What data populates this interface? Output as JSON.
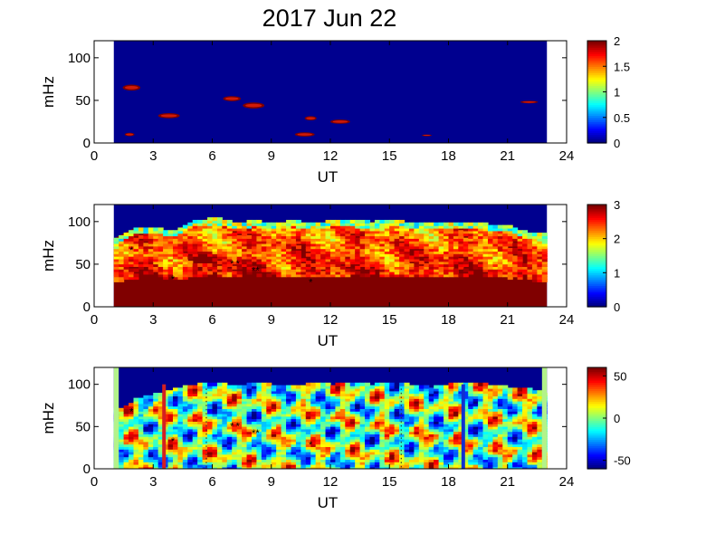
{
  "title": "2017 Jun 22",
  "x_tick_labels": [
    "0",
    "3",
    "6",
    "9",
    "12",
    "15",
    "18",
    "21",
    "24"
  ],
  "y_tick_labels": [
    "0",
    "50",
    "100"
  ],
  "xlabel": "UT",
  "ylabel": "mHz",
  "colors": {
    "background_fill": "#00008f",
    "bad_data_fill": "#b3f28a",
    "positive_line": "#d42020",
    "negative_line": "#1030d0"
  },
  "chart_data": [
    {
      "type": "heatmap",
      "colormap": "jet",
      "xlim": [
        0,
        24
      ],
      "ylim": [
        0,
        120
      ],
      "data_range": [
        1.0,
        23.0
      ],
      "clim": [
        0,
        2
      ],
      "colorbar_ticks": [
        "0",
        "0.5",
        "1",
        "1.5",
        "2"
      ],
      "xlabel": "UT",
      "ylabel": "mHz",
      "highlights": [
        {
          "x": 1.9,
          "y": 65,
          "w": 0.9,
          "h": 7
        },
        {
          "x": 1.8,
          "y": 10,
          "w": 0.5,
          "h": 4
        },
        {
          "x": 3.8,
          "y": 32,
          "w": 1.1,
          "h": 6
        },
        {
          "x": 7.0,
          "y": 52,
          "w": 0.9,
          "h": 6
        },
        {
          "x": 8.1,
          "y": 44,
          "w": 1.1,
          "h": 7
        },
        {
          "x": 10.7,
          "y": 10,
          "w": 1.0,
          "h": 5
        },
        {
          "x": 11.0,
          "y": 29,
          "w": 0.6,
          "h": 5
        },
        {
          "x": 12.5,
          "y": 25,
          "w": 1.0,
          "h": 5
        },
        {
          "x": 16.9,
          "y": 9,
          "w": 0.5,
          "h": 2
        },
        {
          "x": 22.1,
          "y": 48,
          "w": 0.9,
          "h": 3
        }
      ]
    },
    {
      "type": "heatmap",
      "colormap": "jet",
      "xlim": [
        0,
        24
      ],
      "ylim": [
        0,
        120
      ],
      "data_range": [
        1.0,
        23.0
      ],
      "clim": [
        0,
        3
      ],
      "colorbar_ticks": [
        "0",
        "1",
        "2",
        "3"
      ],
      "xlabel": "UT",
      "ylabel": "mHz",
      "upper_edge": [
        [
          1,
          80
        ],
        [
          2,
          92
        ],
        [
          3,
          92
        ],
        [
          4,
          88
        ],
        [
          5,
          100
        ],
        [
          6,
          104
        ],
        [
          7,
          98
        ],
        [
          8,
          100
        ],
        [
          9,
          98
        ],
        [
          10,
          100
        ],
        [
          11,
          97
        ],
        [
          12,
          101
        ],
        [
          13,
          100
        ],
        [
          14,
          99
        ],
        [
          15,
          101
        ],
        [
          16,
          98
        ],
        [
          17,
          97
        ],
        [
          18,
          99
        ],
        [
          19,
          98
        ],
        [
          20,
          96
        ],
        [
          21,
          94
        ],
        [
          22,
          86
        ],
        [
          23,
          84
        ]
      ],
      "markers": [
        [
          1.9,
          67
        ],
        [
          4.0,
          33
        ],
        [
          7.0,
          51
        ],
        [
          7.3,
          51
        ],
        [
          8.1,
          43
        ],
        [
          8.3,
          43
        ],
        [
          11.0,
          29
        ]
      ]
    },
    {
      "type": "heatmap",
      "colormap": "jet",
      "xlim": [
        0,
        24
      ],
      "ylim": [
        0,
        120
      ],
      "data_range": [
        1.0,
        23.0
      ],
      "clim": [
        -60,
        60
      ],
      "colorbar_ticks": [
        "50",
        "0",
        "-50"
      ],
      "colorbar_tick_values": [
        50,
        0,
        -50
      ],
      "xlabel": "UT",
      "ylabel": "mHz",
      "upper_edge": [
        [
          1.3,
          70
        ],
        [
          2,
          82
        ],
        [
          3,
          88
        ],
        [
          4,
          94
        ],
        [
          5,
          99
        ],
        [
          6,
          101
        ],
        [
          7,
          98
        ],
        [
          8,
          100
        ],
        [
          9,
          99
        ],
        [
          10,
          98
        ],
        [
          11,
          100
        ],
        [
          12,
          99
        ],
        [
          13,
          100
        ],
        [
          14,
          99
        ],
        [
          15,
          100
        ],
        [
          16,
          99
        ],
        [
          17,
          96
        ],
        [
          18,
          100
        ],
        [
          19,
          100
        ],
        [
          20,
          99
        ],
        [
          21,
          96
        ],
        [
          22,
          94
        ],
        [
          22.8,
          88
        ]
      ],
      "bad_data_edges": [
        [
          1.0,
          1.25
        ],
        [
          22.75,
          23.0
        ]
      ],
      "vertical_lines": [
        {
          "x": 3.55,
          "ymax": 100,
          "sign": "positive"
        },
        {
          "x": 18.75,
          "ymax": 100,
          "sign": "negative"
        }
      ],
      "dotted_lines": [
        5.7,
        15.6
      ],
      "markers": [
        [
          1.9,
          68
        ],
        [
          4.0,
          33
        ],
        [
          7.0,
          51
        ],
        [
          7.3,
          51
        ],
        [
          8.1,
          43
        ],
        [
          8.3,
          43
        ],
        [
          11.0,
          29
        ]
      ]
    }
  ]
}
